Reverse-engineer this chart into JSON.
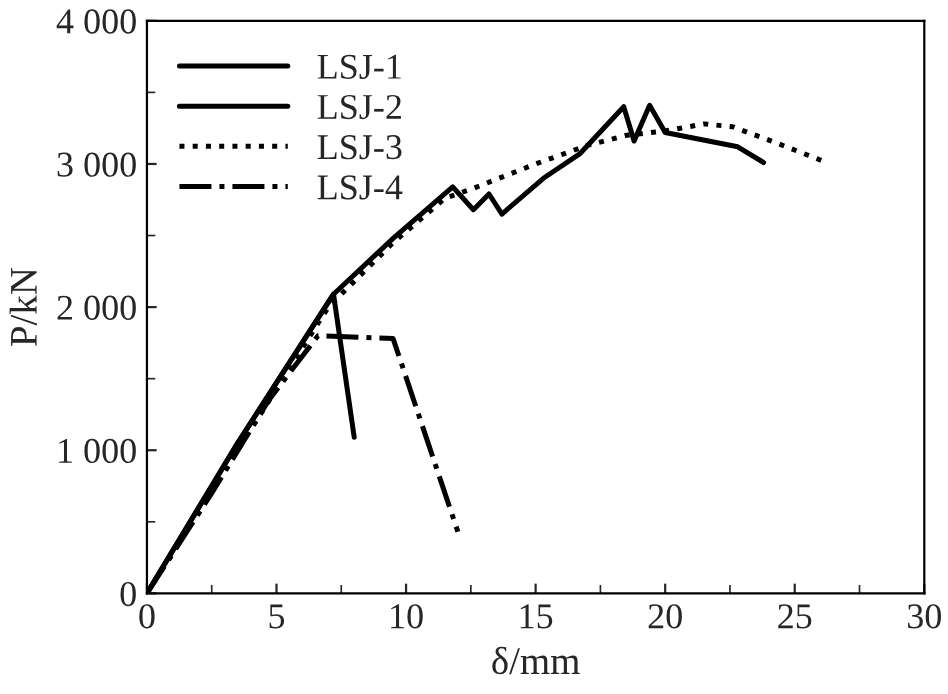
{
  "chart_data": {
    "type": "line",
    "xlabel": "δ/mm",
    "ylabel": "P/kN",
    "xlim": [
      0,
      30
    ],
    "xticks": [
      0,
      5,
      10,
      15,
      20,
      25,
      30
    ],
    "ylim": [
      0,
      4000
    ],
    "yticks": [
      0,
      {
        "value": 1000,
        "label": "1 000"
      },
      {
        "value": 2000,
        "label": "2 000"
      },
      {
        "value": 3000,
        "label": "3 000"
      },
      {
        "value": 4000,
        "label": "4 000"
      }
    ],
    "grid": false,
    "legend": "top left",
    "marker": "none",
    "series": [
      {
        "name": "LSJ-1",
        "color": "#000000",
        "line_style": "solid",
        "x": [
          0,
          3.5,
          7.2,
          8.0
        ],
        "values": [
          0,
          1050,
          2090,
          1090
        ]
      },
      {
        "name": "LSJ-2",
        "color": "#000000",
        "line_style": "solid",
        "x": [
          0,
          3.5,
          7.2,
          9.5,
          11.8,
          12.6,
          13.2,
          13.7,
          15.3,
          16.7,
          18.4,
          18.8,
          19.4,
          20.0,
          22.8,
          23.8
        ],
        "values": [
          0,
          1050,
          2090,
          2480,
          2840,
          2680,
          2790,
          2650,
          2900,
          3070,
          3400,
          3160,
          3410,
          3220,
          3120,
          3010
        ]
      },
      {
        "name": "LSJ-3",
        "color": "#000000",
        "line_style": "dotted",
        "x": [
          0,
          3.5,
          7.0,
          9.5,
          11.5,
          12.6,
          15.0,
          17.0,
          18.5,
          20.0,
          21.5,
          22.6,
          24.1,
          26.1
        ],
        "values": [
          0,
          1000,
          2000,
          2450,
          2760,
          2830,
          3000,
          3130,
          3200,
          3230,
          3280,
          3260,
          3160,
          3020
        ]
      },
      {
        "name": "LSJ-4",
        "color": "#000000",
        "line_style": "dashdot",
        "x": [
          0,
          2.5,
          4.7,
          6.6,
          9.5,
          12.0
        ],
        "values": [
          0,
          700,
          1350,
          1800,
          1780,
          430
        ]
      }
    ]
  }
}
